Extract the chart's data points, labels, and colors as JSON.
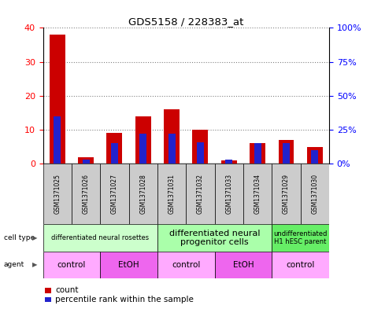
{
  "title": "GDS5158 / 228383_at",
  "samples": [
    "GSM1371025",
    "GSM1371026",
    "GSM1371027",
    "GSM1371028",
    "GSM1371031",
    "GSM1371032",
    "GSM1371033",
    "GSM1371034",
    "GSM1371029",
    "GSM1371030"
  ],
  "counts": [
    38,
    2,
    9,
    14,
    16,
    10,
    1,
    6,
    7,
    5
  ],
  "percentiles_pct": [
    35,
    3,
    15,
    22,
    22,
    16,
    3,
    15,
    15,
    10
  ],
  "ylim_left": [
    0,
    40
  ],
  "ylim_right": [
    0,
    100
  ],
  "yticks_left": [
    0,
    10,
    20,
    30,
    40
  ],
  "yticks_right": [
    0,
    25,
    50,
    75,
    100
  ],
  "ytick_labels_right": [
    "0%",
    "25%",
    "50%",
    "75%",
    "100%"
  ],
  "bar_color_red": "#cc0000",
  "bar_color_blue": "#2222cc",
  "cell_type_groups": [
    {
      "label": "differentiated neural rosettes",
      "start": 0,
      "end": 3,
      "color": "#ccffcc",
      "fontsize": 6
    },
    {
      "label": "differentiated neural\nprogenitor cells",
      "start": 4,
      "end": 7,
      "color": "#aaffaa",
      "fontsize": 8
    },
    {
      "label": "undifferentiated\nH1 hESC parent",
      "start": 8,
      "end": 9,
      "color": "#66ee66",
      "fontsize": 6
    }
  ],
  "agent_groups": [
    {
      "label": "control",
      "start": 0,
      "end": 1,
      "color": "#ffaaff"
    },
    {
      "label": "EtOH",
      "start": 2,
      "end": 3,
      "color": "#ee66ee"
    },
    {
      "label": "control",
      "start": 4,
      "end": 5,
      "color": "#ffaaff"
    },
    {
      "label": "EtOH",
      "start": 6,
      "end": 7,
      "color": "#ee66ee"
    },
    {
      "label": "control",
      "start": 8,
      "end": 9,
      "color": "#ffaaff"
    }
  ],
  "bg_color": "#ffffff",
  "sample_col_color": "#cccccc",
  "legend_count_label": "count",
  "legend_pct_label": "percentile rank within the sample"
}
